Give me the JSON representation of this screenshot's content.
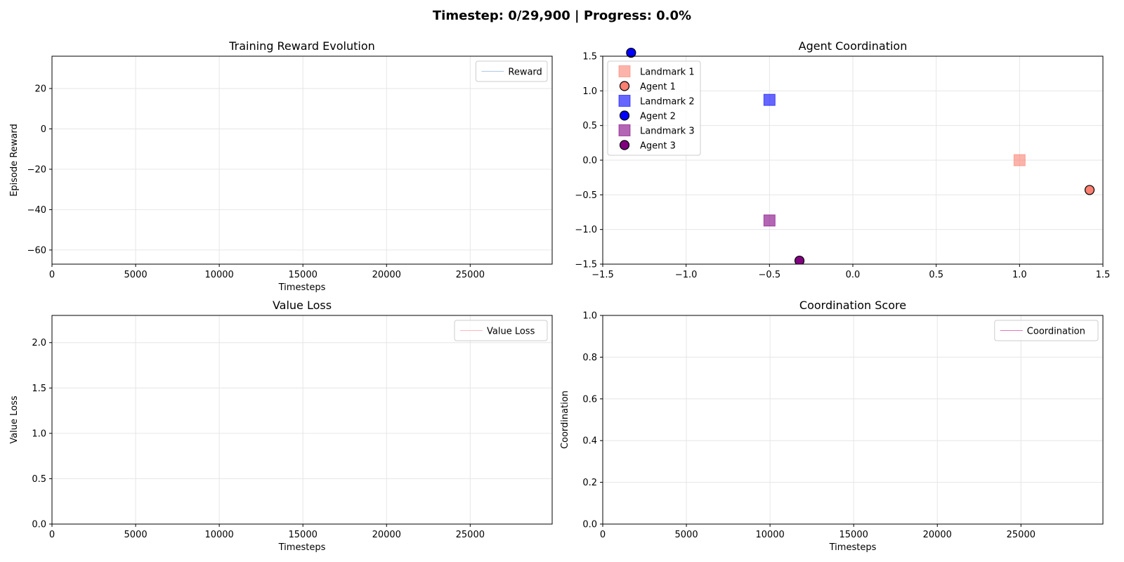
{
  "suptitle": "Timestep: 0/29,900 | Progress: 0.0%",
  "chart_data": [
    {
      "type": "line",
      "title": "Training Reward Evolution",
      "xlabel": "Timesteps",
      "ylabel": "Episode Reward",
      "xlim": [
        0,
        29900
      ],
      "ylim": [
        -67,
        36
      ],
      "xticks": [
        0,
        5000,
        10000,
        15000,
        20000,
        25000
      ],
      "yticks": [
        -60,
        -40,
        -20,
        0,
        20
      ],
      "grid": true,
      "legend_position": "upper right",
      "series": [
        {
          "name": "Reward",
          "color": "#aec7e8",
          "x": [],
          "y": []
        }
      ]
    },
    {
      "type": "scatter",
      "title": "Agent Coordination",
      "xlabel": "",
      "ylabel": "",
      "xlim": [
        -1.5,
        1.5
      ],
      "ylim": [
        -1.5,
        1.5
      ],
      "xticks": [
        -1.5,
        -1.0,
        -0.5,
        0.0,
        0.5,
        1.0,
        1.5
      ],
      "yticks": [
        -1.5,
        -1.0,
        -0.5,
        0.0,
        0.5,
        1.0,
        1.5
      ],
      "grid": true,
      "legend_position": "upper left",
      "series": [
        {
          "name": "Landmark 1",
          "marker": "square",
          "color": "#fa8072",
          "x": [
            1.0
          ],
          "y": [
            0.0
          ]
        },
        {
          "name": "Agent 1",
          "marker": "circle",
          "color": "#fa8072",
          "x": [
            1.42
          ],
          "y": [
            -0.43
          ]
        },
        {
          "name": "Landmark 2",
          "marker": "square",
          "color": "#0000ff",
          "x": [
            -0.5
          ],
          "y": [
            0.87
          ]
        },
        {
          "name": "Agent 2",
          "marker": "circle",
          "color": "#0000ff",
          "x": [
            -1.33
          ],
          "y": [
            1.55
          ]
        },
        {
          "name": "Landmark 3",
          "marker": "square",
          "color": "#800080",
          "x": [
            -0.5
          ],
          "y": [
            -0.87
          ]
        },
        {
          "name": "Agent 3",
          "marker": "circle",
          "color": "#800080",
          "x": [
            -0.32
          ],
          "y": [
            -1.45
          ]
        }
      ]
    },
    {
      "type": "line",
      "title": "Value Loss",
      "xlabel": "Timesteps",
      "ylabel": "Value Loss",
      "xlim": [
        0,
        29900
      ],
      "ylim": [
        0,
        2.3
      ],
      "xticks": [
        0,
        5000,
        10000,
        15000,
        20000,
        25000
      ],
      "yticks": [
        0.0,
        0.5,
        1.0,
        1.5,
        2.0
      ],
      "grid": true,
      "legend_position": "upper right",
      "series": [
        {
          "name": "Value Loss",
          "color": "#ffb6c1",
          "x": [],
          "y": []
        }
      ]
    },
    {
      "type": "line",
      "title": "Coordination Score",
      "xlabel": "Timesteps",
      "ylabel": "Coordination",
      "xlim": [
        0,
        29900
      ],
      "ylim": [
        0,
        1.0
      ],
      "xticks": [
        0,
        5000,
        10000,
        15000,
        20000,
        25000
      ],
      "yticks": [
        0.0,
        0.2,
        0.4,
        0.6,
        0.8,
        1.0
      ],
      "grid": true,
      "legend_position": "upper right",
      "series": [
        {
          "name": "Coordination",
          "color": "#e377c2",
          "x": [],
          "y": []
        }
      ]
    }
  ]
}
